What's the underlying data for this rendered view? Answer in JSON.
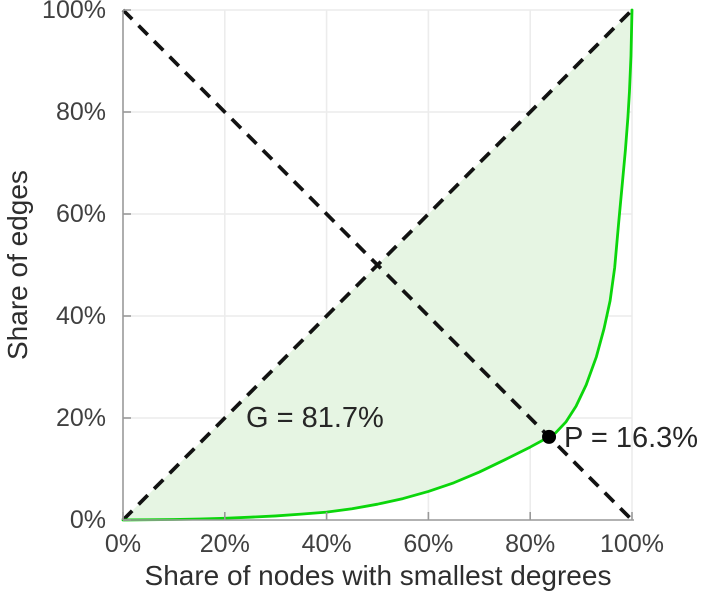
{
  "figure": {
    "x_axis_title": "Share of nodes with smallest degrees",
    "y_axis_title": "Share of edges",
    "gini_label": "G = 81.7%",
    "p_label": "P = 16.3%"
  },
  "chart_data": {
    "type": "area",
    "title": "",
    "xlabel": "Share of nodes with smallest degrees",
    "ylabel": "Share of edges",
    "xlim": [
      0,
      100
    ],
    "ylim": [
      0,
      100
    ],
    "grid": true,
    "legend": "none",
    "tick_values": [
      0,
      20,
      40,
      60,
      80,
      100
    ],
    "x_tick_labels": [
      "0%",
      "20%",
      "40%",
      "60%",
      "80%",
      "100%"
    ],
    "y_tick_labels": [
      "0%",
      "20%",
      "40%",
      "60%",
      "80%",
      "100%"
    ],
    "gini_coefficient_pct": 81.7,
    "p_index_pct": 16.3,
    "annotations": [
      {
        "text": "G = 81.7%",
        "x": 30,
        "y": 19
      },
      {
        "text": "P = 16.3%",
        "x": 87,
        "y": 17
      }
    ],
    "series": [
      {
        "name": "equality-diagonal",
        "style": "dashed",
        "x": [
          0,
          100
        ],
        "y": [
          0,
          100
        ]
      },
      {
        "name": "anti-diagonal",
        "style": "dashed",
        "x": [
          0,
          100
        ],
        "y": [
          100,
          0
        ]
      },
      {
        "name": "lorenz-curve",
        "style": "solid",
        "x": [
          0,
          5,
          10,
          15,
          20,
          25,
          30,
          35,
          40,
          45,
          50,
          55,
          60,
          65,
          70,
          75,
          80,
          83.7,
          85,
          87,
          89,
          91,
          93,
          94.5,
          95.7,
          96.6,
          97.4,
          98.1,
          98.7,
          99.2,
          99.5,
          99.8,
          100
        ],
        "y": [
          0,
          0.05,
          0.1,
          0.2,
          0.35,
          0.55,
          0.8,
          1.15,
          1.55,
          2.2,
          3.1,
          4.2,
          5.6,
          7.3,
          9.4,
          11.8,
          14.3,
          16.3,
          17.1,
          19.2,
          22.3,
          26.5,
          32,
          37.5,
          43,
          49.5,
          58.5,
          66,
          72.5,
          79,
          84,
          91,
          100
        ]
      }
    ],
    "intersection_point": {
      "x": 83.7,
      "y": 16.3
    },
    "colors": {
      "curve": "#0bd60b",
      "fill": "#e6f5e3",
      "dashed": "#121212",
      "grid": "#ececec",
      "axis": "#999999",
      "tick_text": "#404040",
      "point": "#000000"
    }
  }
}
